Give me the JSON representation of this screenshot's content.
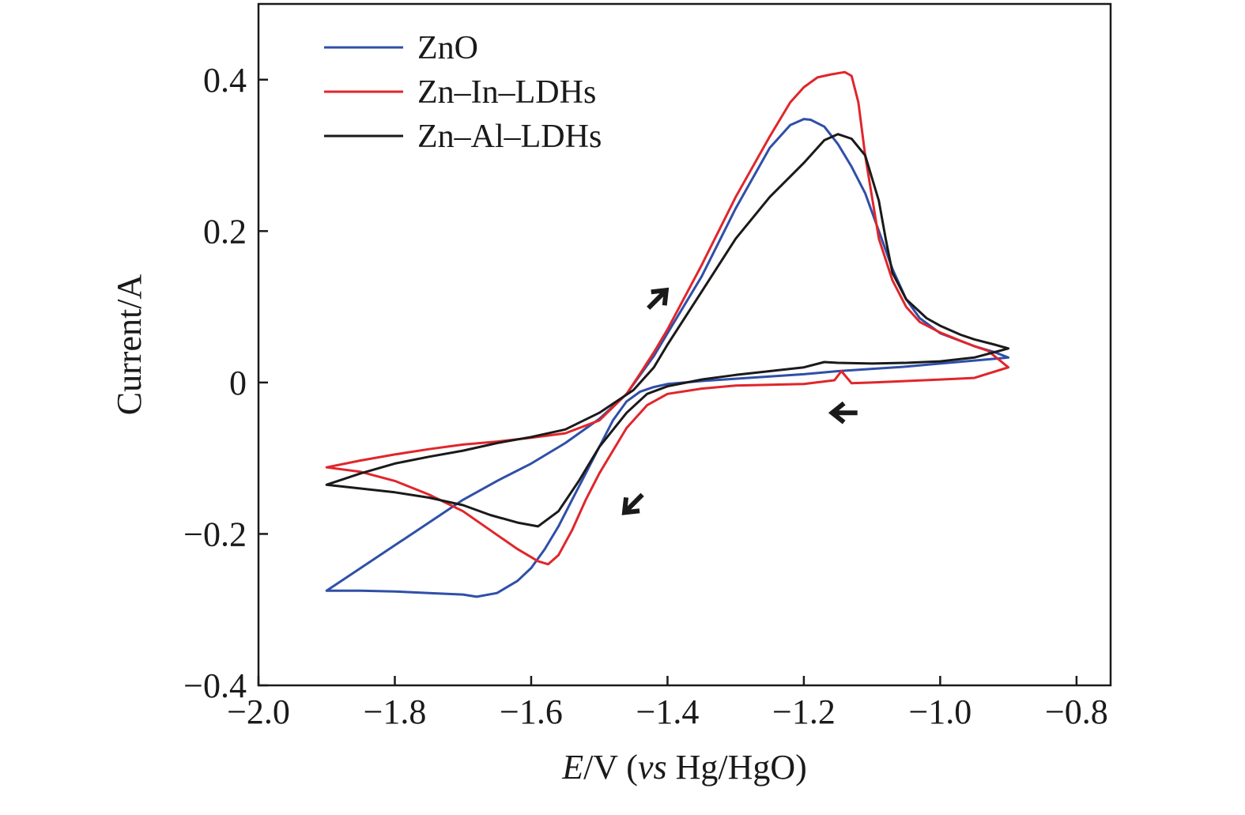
{
  "chart_data": {
    "type": "line",
    "xlabel_parts": [
      {
        "text": "E",
        "italic": true
      },
      {
        "text": "/V (",
        "italic": false
      },
      {
        "text": "vs",
        "italic": true
      },
      {
        "text": " Hg/HgO)",
        "italic": false
      }
    ],
    "ylabel": "Current/A",
    "xlim": [
      -2.0,
      -0.75
    ],
    "ylim": [
      -0.4,
      0.5
    ],
    "x_ticks": [
      {
        "value": -2.0,
        "label": "−2.0"
      },
      {
        "value": -1.8,
        "label": "−1.8"
      },
      {
        "value": -1.6,
        "label": "−1.6"
      },
      {
        "value": -1.4,
        "label": "−1.4"
      },
      {
        "value": -1.2,
        "label": "−1.2"
      },
      {
        "value": -1.0,
        "label": "−1.0"
      },
      {
        "value": -0.8,
        "label": "−0.8"
      }
    ],
    "y_ticks": [
      {
        "value": -0.4,
        "label": "−0.4"
      },
      {
        "value": -0.2,
        "label": "−0.2"
      },
      {
        "value": 0,
        "label": "0"
      },
      {
        "value": 0.2,
        "label": "0.2"
      },
      {
        "value": 0.4,
        "label": "0.4"
      }
    ],
    "grid": false,
    "legend_position": "top-left",
    "series": [
      {
        "name": "ZnO",
        "color": "#2f4fa8",
        "points": [
          [
            -1.9,
            -0.275
          ],
          [
            -1.85,
            -0.275
          ],
          [
            -1.8,
            -0.276
          ],
          [
            -1.75,
            -0.278
          ],
          [
            -1.7,
            -0.28
          ],
          [
            -1.68,
            -0.283
          ],
          [
            -1.65,
            -0.278
          ],
          [
            -1.62,
            -0.262
          ],
          [
            -1.6,
            -0.245
          ],
          [
            -1.58,
            -0.22
          ],
          [
            -1.56,
            -0.19
          ],
          [
            -1.54,
            -0.155
          ],
          [
            -1.52,
            -0.12
          ],
          [
            -1.5,
            -0.085
          ],
          [
            -1.48,
            -0.05
          ],
          [
            -1.46,
            -0.025
          ],
          [
            -1.44,
            -0.012
          ],
          [
            -1.42,
            -0.006
          ],
          [
            -1.4,
            -0.002
          ],
          [
            -1.35,
            0.002
          ],
          [
            -1.3,
            0.005
          ],
          [
            -1.25,
            0.008
          ],
          [
            -1.2,
            0.011
          ],
          [
            -1.15,
            0.015
          ],
          [
            -1.1,
            0.018
          ],
          [
            -1.05,
            0.021
          ],
          [
            -1.0,
            0.025
          ],
          [
            -0.95,
            0.029
          ],
          [
            -0.9,
            0.033
          ],
          [
            -0.92,
            0.04
          ],
          [
            -0.95,
            0.048
          ],
          [
            -1.0,
            0.065
          ],
          [
            -1.03,
            0.085
          ],
          [
            -1.05,
            0.11
          ],
          [
            -1.07,
            0.15
          ],
          [
            -1.09,
            0.2
          ],
          [
            -1.11,
            0.25
          ],
          [
            -1.13,
            0.285
          ],
          [
            -1.15,
            0.315
          ],
          [
            -1.17,
            0.338
          ],
          [
            -1.19,
            0.347
          ],
          [
            -1.2,
            0.348
          ],
          [
            -1.22,
            0.34
          ],
          [
            -1.25,
            0.31
          ],
          [
            -1.3,
            0.23
          ],
          [
            -1.35,
            0.14
          ],
          [
            -1.4,
            0.065
          ],
          [
            -1.42,
            0.035
          ],
          [
            -1.44,
            0.01
          ],
          [
            -1.46,
            -0.015
          ],
          [
            -1.5,
            -0.048
          ],
          [
            -1.55,
            -0.08
          ],
          [
            -1.6,
            -0.107
          ],
          [
            -1.65,
            -0.13
          ],
          [
            -1.7,
            -0.155
          ],
          [
            -1.75,
            -0.185
          ],
          [
            -1.8,
            -0.215
          ],
          [
            -1.85,
            -0.245
          ],
          [
            -1.9,
            -0.275
          ]
        ]
      },
      {
        "name": "Zn–In–LDHs",
        "color": "#e0262b",
        "points": [
          [
            -1.9,
            -0.112
          ],
          [
            -1.85,
            -0.103
          ],
          [
            -1.8,
            -0.095
          ],
          [
            -1.75,
            -0.088
          ],
          [
            -1.7,
            -0.082
          ],
          [
            -1.65,
            -0.078
          ],
          [
            -1.6,
            -0.073
          ],
          [
            -1.55,
            -0.067
          ],
          [
            -1.5,
            -0.05
          ],
          [
            -1.46,
            -0.015
          ],
          [
            -1.44,
            0.012
          ],
          [
            -1.42,
            0.04
          ],
          [
            -1.4,
            0.07
          ],
          [
            -1.35,
            0.155
          ],
          [
            -1.3,
            0.245
          ],
          [
            -1.25,
            0.325
          ],
          [
            -1.22,
            0.37
          ],
          [
            -1.2,
            0.39
          ],
          [
            -1.18,
            0.403
          ],
          [
            -1.16,
            0.407
          ],
          [
            -1.14,
            0.41
          ],
          [
            -1.13,
            0.405
          ],
          [
            -1.12,
            0.37
          ],
          [
            -1.11,
            0.3
          ],
          [
            -1.09,
            0.19
          ],
          [
            -1.07,
            0.135
          ],
          [
            -1.05,
            0.1
          ],
          [
            -1.03,
            0.08
          ],
          [
            -1.0,
            0.066
          ],
          [
            -0.97,
            0.055
          ],
          [
            -0.95,
            0.048
          ],
          [
            -0.93,
            0.042
          ],
          [
            -0.9,
            0.02
          ],
          [
            -0.95,
            0.006
          ],
          [
            -1.0,
            0.004
          ],
          [
            -1.05,
            0.002
          ],
          [
            -1.1,
            0.0
          ],
          [
            -1.13,
            -0.001
          ],
          [
            -1.145,
            0.015
          ],
          [
            -1.155,
            0.003
          ],
          [
            -1.2,
            -0.002
          ],
          [
            -1.25,
            -0.003
          ],
          [
            -1.3,
            -0.004
          ],
          [
            -1.35,
            -0.008
          ],
          [
            -1.4,
            -0.015
          ],
          [
            -1.43,
            -0.03
          ],
          [
            -1.46,
            -0.06
          ],
          [
            -1.48,
            -0.09
          ],
          [
            -1.5,
            -0.12
          ],
          [
            -1.52,
            -0.155
          ],
          [
            -1.54,
            -0.195
          ],
          [
            -1.56,
            -0.228
          ],
          [
            -1.575,
            -0.24
          ],
          [
            -1.59,
            -0.236
          ],
          [
            -1.62,
            -0.22
          ],
          [
            -1.66,
            -0.195
          ],
          [
            -1.7,
            -0.17
          ],
          [
            -1.75,
            -0.148
          ],
          [
            -1.8,
            -0.13
          ],
          [
            -1.85,
            -0.118
          ],
          [
            -1.9,
            -0.112
          ]
        ]
      },
      {
        "name": "Zn–Al–LDHs",
        "color": "#1a1a1a",
        "points": [
          [
            -1.9,
            -0.135
          ],
          [
            -1.85,
            -0.12
          ],
          [
            -1.8,
            -0.107
          ],
          [
            -1.75,
            -0.098
          ],
          [
            -1.7,
            -0.09
          ],
          [
            -1.65,
            -0.08
          ],
          [
            -1.6,
            -0.072
          ],
          [
            -1.55,
            -0.062
          ],
          [
            -1.5,
            -0.04
          ],
          [
            -1.45,
            -0.01
          ],
          [
            -1.42,
            0.02
          ],
          [
            -1.4,
            0.05
          ],
          [
            -1.35,
            0.12
          ],
          [
            -1.3,
            0.19
          ],
          [
            -1.25,
            0.245
          ],
          [
            -1.2,
            0.29
          ],
          [
            -1.17,
            0.32
          ],
          [
            -1.15,
            0.328
          ],
          [
            -1.13,
            0.322
          ],
          [
            -1.11,
            0.3
          ],
          [
            -1.09,
            0.24
          ],
          [
            -1.08,
            0.19
          ],
          [
            -1.07,
            0.145
          ],
          [
            -1.05,
            0.11
          ],
          [
            -1.02,
            0.085
          ],
          [
            -1.0,
            0.075
          ],
          [
            -0.97,
            0.063
          ],
          [
            -0.95,
            0.057
          ],
          [
            -0.92,
            0.05
          ],
          [
            -0.9,
            0.045
          ],
          [
            -0.95,
            0.033
          ],
          [
            -1.0,
            0.028
          ],
          [
            -1.05,
            0.026
          ],
          [
            -1.1,
            0.025
          ],
          [
            -1.15,
            0.026
          ],
          [
            -1.17,
            0.027
          ],
          [
            -1.2,
            0.02
          ],
          [
            -1.25,
            0.015
          ],
          [
            -1.3,
            0.01
          ],
          [
            -1.35,
            0.004
          ],
          [
            -1.4,
            -0.005
          ],
          [
            -1.43,
            -0.015
          ],
          [
            -1.46,
            -0.04
          ],
          [
            -1.5,
            -0.085
          ],
          [
            -1.53,
            -0.13
          ],
          [
            -1.56,
            -0.17
          ],
          [
            -1.59,
            -0.19
          ],
          [
            -1.62,
            -0.185
          ],
          [
            -1.66,
            -0.175
          ],
          [
            -1.7,
            -0.162
          ],
          [
            -1.75,
            -0.152
          ],
          [
            -1.8,
            -0.145
          ],
          [
            -1.85,
            -0.14
          ],
          [
            -1.9,
            -0.135
          ]
        ]
      }
    ],
    "annotations": [
      {
        "name": "arrow-up-right",
        "x": -1.415,
        "y": 0.11,
        "dir": "up-right"
      },
      {
        "name": "arrow-left",
        "x": -1.14,
        "y": -0.04,
        "dir": "left"
      },
      {
        "name": "arrow-down-left",
        "x": -1.45,
        "y": -0.16,
        "dir": "down-left"
      }
    ]
  }
}
